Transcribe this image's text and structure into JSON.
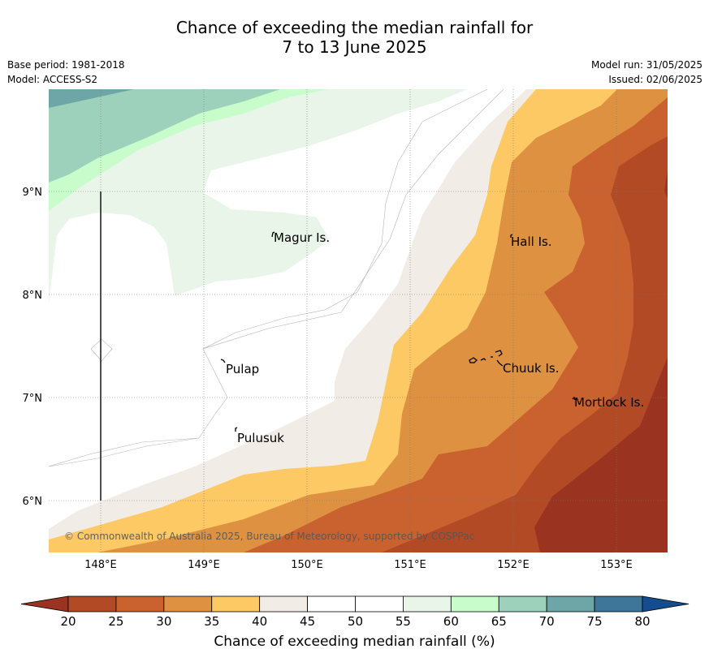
{
  "title": {
    "line1": "Chance of exceeding the median rainfall for",
    "line2": "7 to 13 June 2025"
  },
  "meta_left": {
    "base_period": "Base period: 1981-2018",
    "model": "Model: ACCESS-S2"
  },
  "meta_right": {
    "model_run": "Model run: 31/05/2025",
    "issued": "Issued: 02/06/2025"
  },
  "map": {
    "lon_labels": [
      "148°E",
      "149°E",
      "150°E",
      "151°E",
      "152°E",
      "153°E"
    ],
    "lat_labels": [
      "9°N",
      "8°N",
      "7°N",
      "6°N"
    ],
    "places": [
      "Magur Is.",
      "Hall Is.",
      "Pulap",
      "Chuuk Is.",
      "Mortlock Is.",
      "Pulusuk"
    ],
    "copyright": "© Commonwealth of Australia 2025, Bureau of Meteorology, supported by COSPPac"
  },
  "colorbar": {
    "ticks": [
      "20",
      "25",
      "30",
      "35",
      "40",
      "45",
      "50",
      "55",
      "60",
      "65",
      "70",
      "75",
      "80"
    ],
    "colors": [
      "#9a3320",
      "#b24a26",
      "#c9622f",
      "#de9241",
      "#fdc964",
      "#f1ece6",
      "#ffffff",
      "#ffffff",
      "#e9f5e9",
      "#c8fccb",
      "#9dd1bb",
      "#6ea5a6",
      "#3e769a",
      "#134d8d"
    ],
    "label": "Chance of exceeding median rainfall (%)"
  }
}
